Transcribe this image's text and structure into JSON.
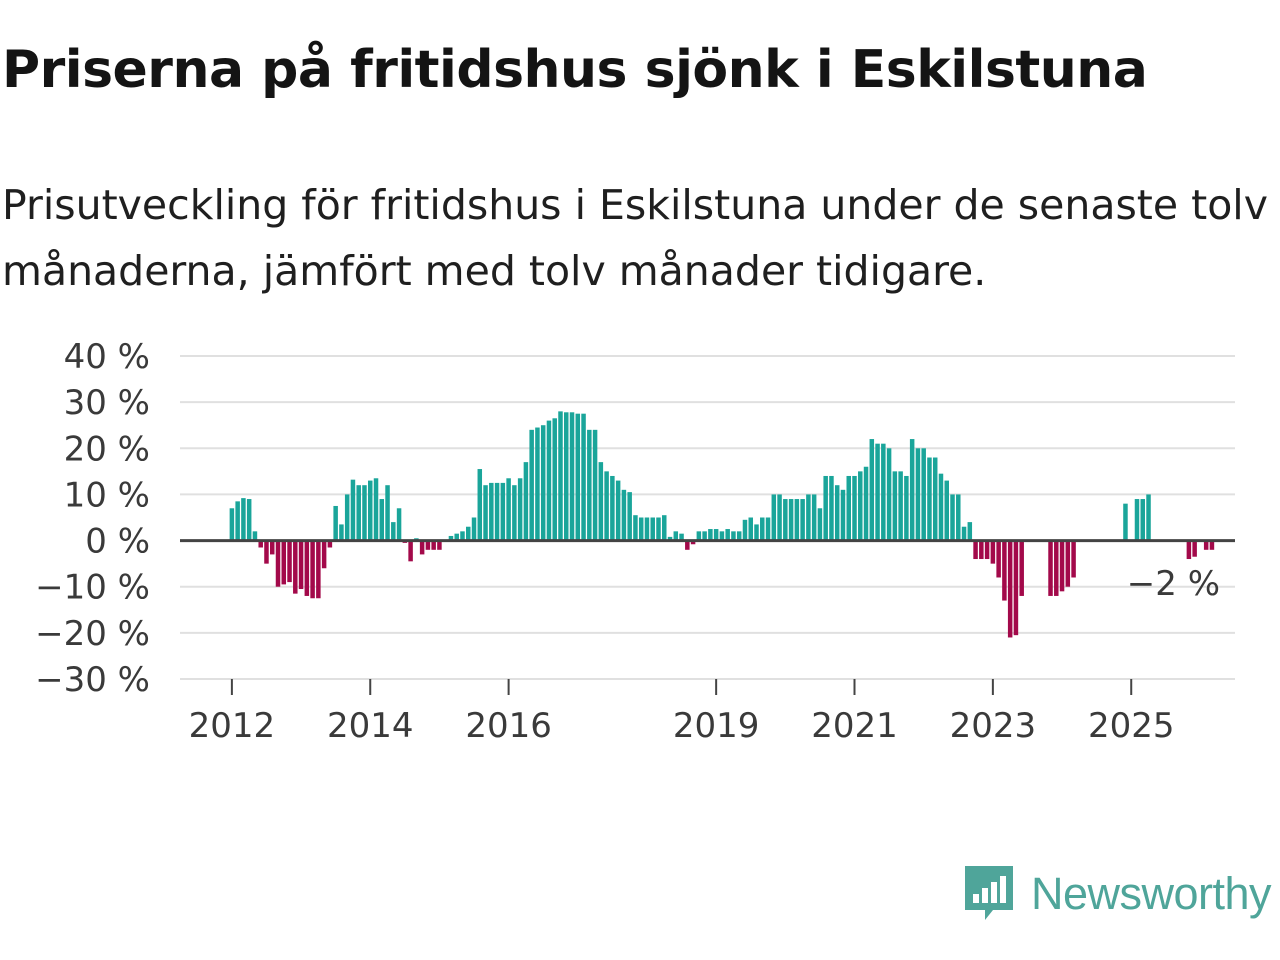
{
  "title": "Priserna på fritidshus sjönk i Eskilstuna",
  "subtitle": "Prisutveckling för fritidshus i Eskilstuna under de senaste tolv månaderna, jämfört med tolv månader tidigare.",
  "brand": {
    "name": "Newsworthy",
    "icon": "newsworthy-logo-icon",
    "color": "#4fa59a"
  },
  "colors": {
    "positive": "#1aa59a",
    "negative": "#a3094a",
    "grid": "#e0e0e0",
    "zero_line": "#444444"
  },
  "chart_data": {
    "type": "bar",
    "title": "Priserna på fritidshus sjönk i Eskilstuna",
    "xlabel": "",
    "ylabel": "",
    "ylim": [
      -30,
      40
    ],
    "yticks": [
      40,
      30,
      20,
      10,
      0,
      -10,
      -20,
      -30
    ],
    "ytick_labels": [
      "40 %",
      "30 %",
      "20 %",
      "10 %",
      "0 %",
      "−10 %",
      "−20 %",
      "−30 %"
    ],
    "xticks": [
      {
        "label": "2012",
        "month_index": 0
      },
      {
        "label": "2014",
        "month_index": 24
      },
      {
        "label": "2016",
        "month_index": 48
      },
      {
        "label": "2019",
        "month_index": 84
      },
      {
        "label": "2021",
        "month_index": 108
      },
      {
        "label": "2023",
        "month_index": 132
      },
      {
        "label": "2025",
        "month_index": 156
      }
    ],
    "x_start": "2012-01",
    "x_month_range": [
      -9,
      174
    ],
    "unit": "% change vs. twelve months earlier, monthly",
    "annotation": {
      "label": "−2 %",
      "value": -2
    },
    "values": [
      7,
      8.5,
      9.2,
      9,
      2,
      -1.5,
      -5,
      -3,
      -10,
      -9.5,
      -9,
      -11.5,
      -10.5,
      -12,
      -12.5,
      -12.5,
      -6,
      -1.5,
      7.5,
      3.5,
      10,
      13.2,
      12,
      12,
      13,
      13.5,
      9,
      12,
      4,
      7,
      -0.5,
      -4.5,
      0.5,
      -3,
      -2,
      -2,
      -2,
      0,
      1,
      1.5,
      2,
      3,
      5,
      15.5,
      12,
      12.5,
      12.5,
      12.5,
      13.5,
      12,
      13.5,
      17,
      24,
      24.5,
      25,
      26,
      26.5,
      28,
      27.8,
      27.8,
      27.5,
      27.5,
      24,
      24,
      17,
      15,
      14,
      13,
      11,
      10.5,
      5.5,
      5,
      5,
      5,
      5,
      5.5,
      0.8,
      2,
      1.5,
      -2,
      -0.8,
      2,
      2,
      2.5,
      2.5,
      2,
      2.5,
      2,
      2,
      4.5,
      5,
      3.5,
      5,
      5,
      10,
      10,
      9,
      9,
      9,
      9,
      10,
      10,
      7,
      14,
      14,
      12,
      11,
      14,
      14,
      15,
      16,
      22,
      21,
      21,
      20,
      15,
      15,
      14,
      22,
      20,
      20,
      18,
      18,
      14.5,
      13,
      10,
      10,
      3,
      4,
      -4,
      -4,
      -4,
      -5,
      -8,
      -13,
      -21,
      -20.5,
      -12,
      null,
      null,
      null,
      null,
      -12,
      -12,
      -11,
      -10,
      -8,
      null,
      null,
      null,
      null,
      null,
      null,
      null,
      null,
      8,
      null,
      9,
      9,
      10,
      null,
      null,
      null,
      null,
      null,
      null,
      -4,
      -3.5,
      null,
      -2,
      -2
    ]
  }
}
